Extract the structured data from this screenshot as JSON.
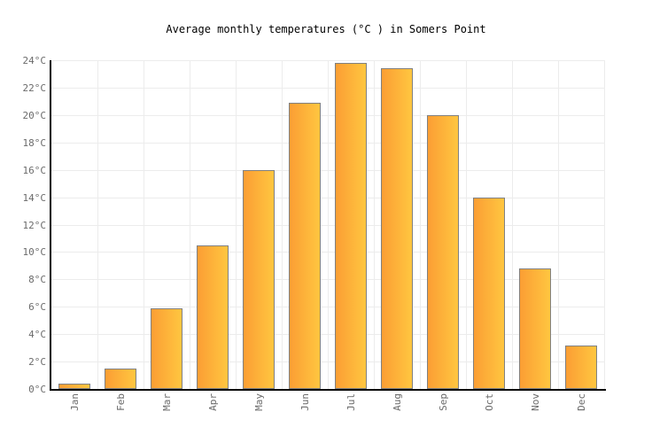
{
  "chart_data": {
    "type": "bar",
    "title": "Average monthly temperatures (°C ) in Somers Point",
    "categories": [
      "Jan",
      "Feb",
      "Mar",
      "Apr",
      "May",
      "Jun",
      "Jul",
      "Aug",
      "Sep",
      "Oct",
      "Nov",
      "Dec"
    ],
    "values": [
      0.4,
      1.5,
      5.9,
      10.5,
      16,
      20.9,
      23.8,
      23.4,
      20,
      14,
      8.8,
      3.2
    ],
    "xlabel": "",
    "ylabel": "",
    "ylim": [
      0,
      24
    ],
    "ytick_step": 2,
    "ytick_suffix": "°C",
    "yticks": [
      "0°C",
      "2°C",
      "4°C",
      "6°C",
      "8°C",
      "10°C",
      "12°C",
      "14°C",
      "16°C",
      "18°C",
      "20°C",
      "22°C",
      "24°C"
    ],
    "grid": "on",
    "legend": "none"
  },
  "colors": {
    "background": "#FFFFFF",
    "bar_gradient_left": "#FB9E34",
    "bar_gradient_right": "#FFC640",
    "bar_border": "#808080",
    "gridline": "#ECECEC",
    "axis": "#000000",
    "tick_label": "#6B6B6B",
    "title": "#000000"
  }
}
